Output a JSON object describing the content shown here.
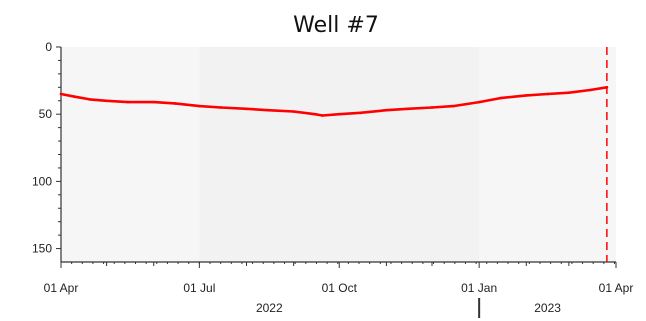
{
  "chart_data": {
    "type": "line",
    "title": "Well #7",
    "xlabel": "",
    "ylabel": "",
    "y_inverted": true,
    "ylim": [
      0,
      160
    ],
    "y_ticks": [
      0,
      50,
      100,
      150
    ],
    "x_range": [
      "2022-04-01",
      "2023-04-01"
    ],
    "x_ticks": [
      {
        "date": "2022-04-01",
        "label": "01 Apr"
      },
      {
        "date": "2022-07-01",
        "label": "01 Jul"
      },
      {
        "date": "2022-10-01",
        "label": "01 Oct"
      },
      {
        "date": "2023-01-01",
        "label": "01 Jan"
      },
      {
        "date": "2023-04-01",
        "label": "01 Apr"
      }
    ],
    "minor_x_ticks": [
      "2022-05-01",
      "2022-06-01",
      "2022-08-01",
      "2022-09-01",
      "2022-11-01",
      "2022-12-01",
      "2023-02-01",
      "2023-03-01"
    ],
    "year_labels": [
      {
        "date": "2022-08-16",
        "label": "2022"
      },
      {
        "date": "2023-02-15",
        "label": "2023"
      }
    ],
    "year_separator_date": "2023-01-01",
    "shaded_bands": [
      {
        "from": "2022-07-01",
        "to": "2023-01-01"
      }
    ],
    "marker_line": {
      "date": "2023-03-26",
      "color": "#ff0000",
      "style": "dashed"
    },
    "series": [
      {
        "color": "#ff0000",
        "points": [
          [
            "2022-04-01",
            35
          ],
          [
            "2022-04-10",
            37
          ],
          [
            "2022-04-20",
            39
          ],
          [
            "2022-05-01",
            40
          ],
          [
            "2022-05-15",
            41
          ],
          [
            "2022-06-01",
            41
          ],
          [
            "2022-06-15",
            42
          ],
          [
            "2022-07-01",
            44
          ],
          [
            "2022-07-15",
            45
          ],
          [
            "2022-08-01",
            46
          ],
          [
            "2022-08-15",
            47
          ],
          [
            "2022-09-01",
            48
          ],
          [
            "2022-09-15",
            50
          ],
          [
            "2022-09-20",
            51
          ],
          [
            "2022-10-01",
            50
          ],
          [
            "2022-10-15",
            49
          ],
          [
            "2022-11-01",
            47
          ],
          [
            "2022-11-15",
            46
          ],
          [
            "2022-12-01",
            45
          ],
          [
            "2022-12-15",
            44
          ],
          [
            "2023-01-01",
            41
          ],
          [
            "2023-01-15",
            38
          ],
          [
            "2023-02-01",
            36
          ],
          [
            "2023-02-15",
            35
          ],
          [
            "2023-03-01",
            34
          ],
          [
            "2023-03-15",
            32
          ],
          [
            "2023-03-26",
            30
          ]
        ]
      }
    ],
    "colors": {
      "series": "#ff0000",
      "axis": "#333333",
      "plot_bg": "#f6f6f6",
      "band_bg": "#f2f2f2"
    }
  }
}
